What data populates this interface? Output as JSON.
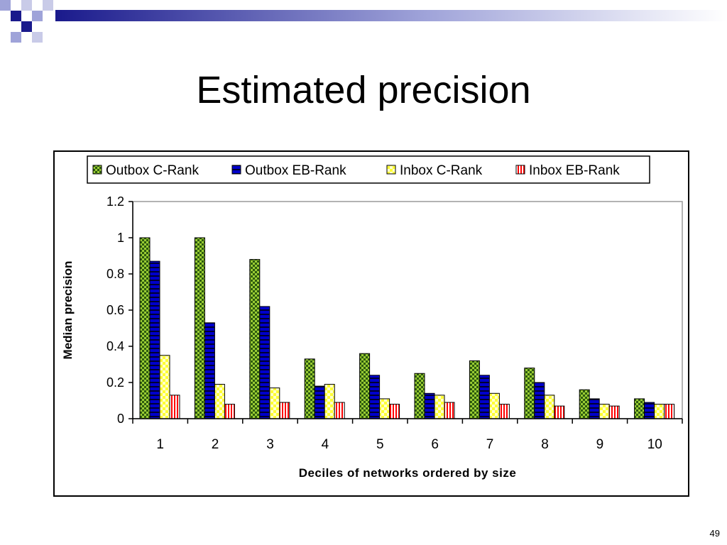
{
  "slide": {
    "title": "Estimated precision",
    "page_number": "49"
  },
  "colors": {
    "header_dark": "#1a1a8c",
    "header_light": "#9fa3d9"
  },
  "chart_data": {
    "type": "bar",
    "categories": [
      "1",
      "2",
      "3",
      "4",
      "5",
      "6",
      "7",
      "8",
      "9",
      "10"
    ],
    "series": [
      {
        "name": "Outbox C-Rank",
        "color": "#99cc33",
        "pattern": "checker-dark",
        "values": [
          1.0,
          1.0,
          0.88,
          0.33,
          0.36,
          0.25,
          0.32,
          0.28,
          0.16,
          0.11
        ]
      },
      {
        "name": "Outbox EB-Rank",
        "color": "#0000cc",
        "pattern": "stripes-dark",
        "values": [
          0.87,
          0.53,
          0.62,
          0.18,
          0.24,
          0.14,
          0.24,
          0.2,
          0.11,
          0.09
        ]
      },
      {
        "name": "Inbox C-Rank",
        "color": "#ffff99",
        "pattern": "checker-light",
        "values": [
          0.35,
          0.19,
          0.17,
          0.19,
          0.11,
          0.13,
          0.14,
          0.13,
          0.08,
          0.08
        ]
      },
      {
        "name": "Inbox EB-Rank",
        "color": "#ff0000",
        "pattern": "stripes-light",
        "values": [
          0.13,
          0.08,
          0.09,
          0.09,
          0.08,
          0.09,
          0.08,
          0.07,
          0.07,
          0.08
        ]
      }
    ],
    "yticks": [
      "0",
      "0.2",
      "0.4",
      "0.6",
      "0.8",
      "1",
      "1.2"
    ],
    "ylim": [
      0,
      1.2
    ],
    "xlabel": "Deciles of networks ordered by size",
    "ylabel": "Median precision",
    "grid": false,
    "legend": "top"
  }
}
